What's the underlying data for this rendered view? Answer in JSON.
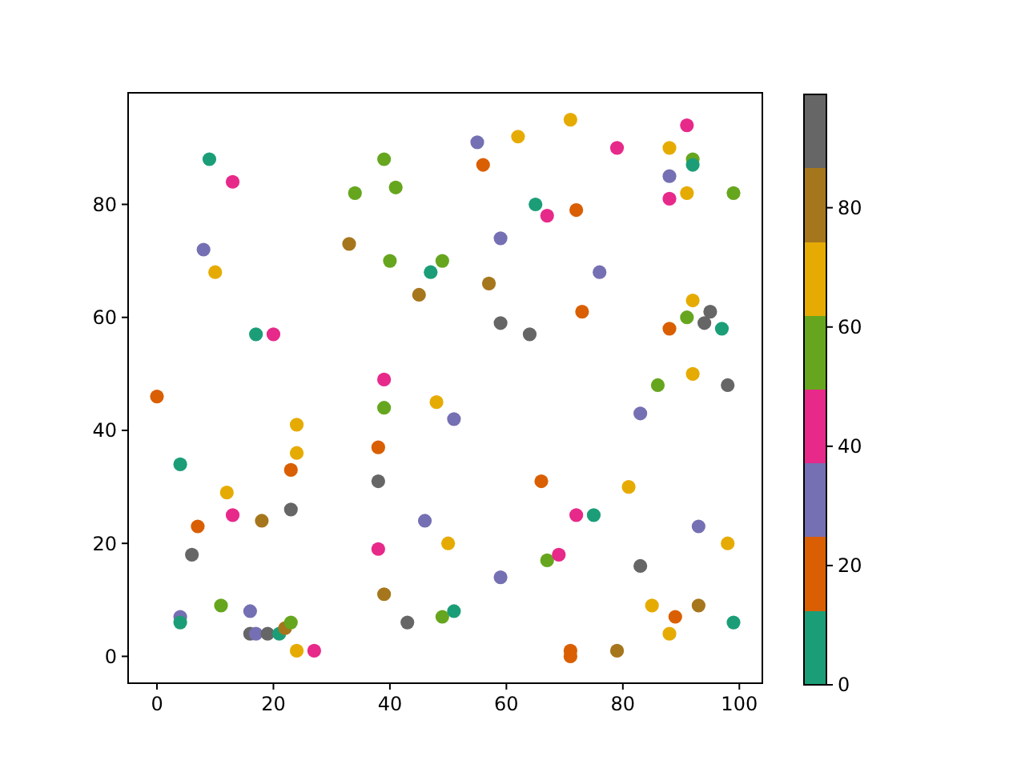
{
  "chart_data": {
    "type": "scatter",
    "marker": "circle",
    "grid": false,
    "xlim": [
      -4.95,
      103.95
    ],
    "ylim": [
      -4.75,
      99.75
    ],
    "xticks": [
      0,
      20,
      40,
      60,
      80,
      100
    ],
    "yticks": [
      0,
      20,
      40,
      60,
      80
    ],
    "clim": [
      0,
      99
    ],
    "cticks": [
      0,
      20,
      40,
      60,
      80
    ],
    "x": [
      0,
      4,
      4,
      4,
      6,
      7,
      9,
      8,
      10,
      11,
      12,
      13,
      13,
      16,
      16,
      17,
      19,
      21,
      22,
      23,
      17,
      18,
      20,
      23,
      23,
      24,
      24,
      24,
      27,
      33,
      34,
      38,
      38,
      38,
      39,
      39,
      39,
      39,
      40,
      41,
      43,
      45,
      46,
      47,
      48,
      49,
      49,
      50,
      51,
      51,
      55,
      56,
      57,
      59,
      59,
      59,
      62,
      64,
      65,
      66,
      67,
      67,
      69,
      71,
      71,
      71,
      72,
      72,
      73,
      75,
      76,
      79,
      79,
      81,
      83,
      83,
      85,
      86,
      88,
      88,
      88,
      88,
      88,
      89,
      91,
      91,
      91,
      92,
      92,
      92,
      92,
      93,
      93,
      94,
      95,
      97,
      98,
      98,
      99,
      99
    ],
    "values": [
      46,
      34,
      7,
      6,
      18,
      23,
      88,
      72,
      68,
      9,
      29,
      84,
      25,
      8,
      4,
      4,
      4,
      4,
      5,
      6,
      57,
      24,
      57,
      33,
      26,
      41,
      36,
      1,
      1,
      73,
      82,
      37,
      31,
      19,
      88,
      49,
      44,
      11,
      70,
      83,
      6,
      64,
      24,
      68,
      45,
      70,
      7,
      20,
      42,
      8,
      91,
      87,
      66,
      74,
      59,
      14,
      92,
      57,
      80,
      31,
      78,
      17,
      18,
      95,
      1,
      0,
      79,
      25,
      61,
      25,
      68,
      90,
      1,
      30,
      43,
      16,
      9,
      48,
      90,
      85,
      81,
      58,
      4,
      7,
      94,
      82,
      60,
      88,
      87,
      63,
      50,
      23,
      9,
      59,
      61,
      58,
      48,
      20,
      82,
      6
    ],
    "colors": [
      "#d95f02",
      "#1b9e77",
      "#7570b3",
      "#1b9e77",
      "#666666",
      "#d95f02",
      "#1b9e77",
      "#7570b3",
      "#e6ab02",
      "#66a61e",
      "#e6ab02",
      "#e7298a",
      "#e7298a",
      "#7570b3",
      "#666666",
      "#7570b3",
      "#666666",
      "#1b9e77",
      "#a6761d",
      "#66a61e",
      "#1b9e77",
      "#a6761d",
      "#e7298a",
      "#d95f02",
      "#666666",
      "#e6ab02",
      "#e6ab02",
      "#e6ab02",
      "#e7298a",
      "#a6761d",
      "#66a61e",
      "#d95f02",
      "#666666",
      "#e7298a",
      "#66a61e",
      "#e7298a",
      "#66a61e",
      "#a6761d",
      "#66a61e",
      "#66a61e",
      "#666666",
      "#a6761d",
      "#7570b3",
      "#1b9e77",
      "#e6ab02",
      "#66a61e",
      "#66a61e",
      "#e6ab02",
      "#7570b3",
      "#1b9e77",
      "#7570b3",
      "#d95f02",
      "#a6761d",
      "#7570b3",
      "#666666",
      "#7570b3",
      "#e6ab02",
      "#666666",
      "#1b9e77",
      "#d95f02",
      "#e7298a",
      "#66a61e",
      "#e7298a",
      "#e6ab02",
      "#d95f02",
      "#d95f02",
      "#d95f02",
      "#e7298a",
      "#d95f02",
      "#1b9e77",
      "#7570b3",
      "#e7298a",
      "#a6761d",
      "#e6ab02",
      "#7570b3",
      "#666666",
      "#e6ab02",
      "#66a61e",
      "#e6ab02",
      "#7570b3",
      "#e7298a",
      "#d95f02",
      "#e6ab02",
      "#d95f02",
      "#e7298a",
      "#e6ab02",
      "#66a61e",
      "#66a61e",
      "#1b9e77",
      "#e6ab02",
      "#e6ab02",
      "#7570b3",
      "#a6761d",
      "#666666",
      "#666666",
      "#1b9e77",
      "#666666",
      "#e6ab02",
      "#66a61e",
      "#1b9e77"
    ]
  }
}
